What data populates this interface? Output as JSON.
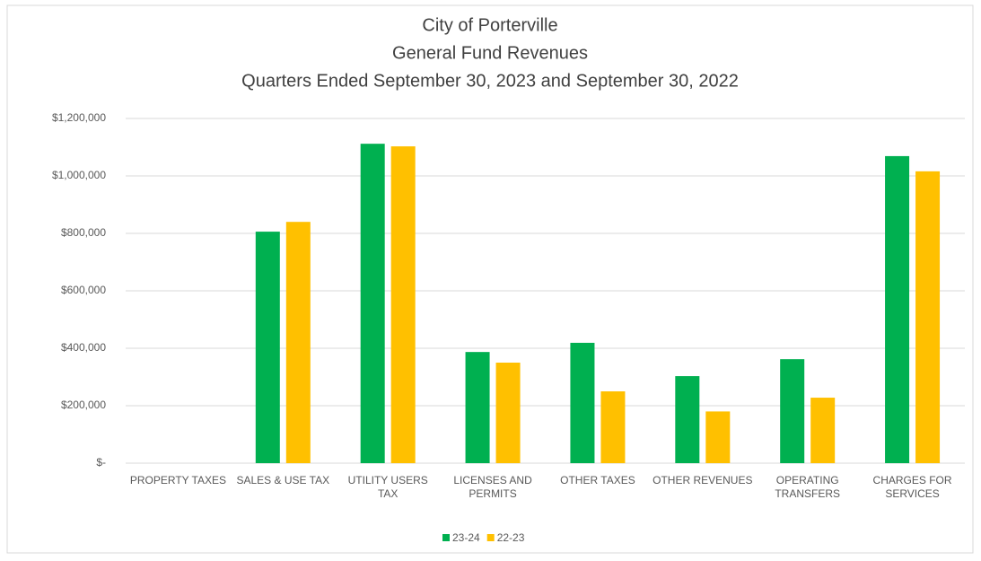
{
  "chart_data": {
    "type": "bar",
    "title": [
      "City of Porterville",
      "General Fund Revenues",
      "Quarters Ended September 30, 2023 and September 30, 2022"
    ],
    "categories": [
      "PROPERTY TAXES",
      "SALES & USE TAX",
      "UTILITY USERS TAX",
      "LICENSES AND PERMITS",
      "OTHER TAXES",
      "OTHER REVENUES",
      "OPERATING TRANSFERS",
      "CHARGES FOR SERVICES"
    ],
    "series": [
      {
        "name": "23-24",
        "color": "#00b050",
        "values": [
          0,
          806000,
          1112000,
          387000,
          419000,
          303000,
          362000,
          1069000
        ]
      },
      {
        "name": "22-23",
        "color": "#ffc000",
        "values": [
          0,
          840000,
          1103000,
          350000,
          250000,
          180000,
          228000,
          1016000
        ]
      }
    ],
    "ylim": [
      0,
      1200000
    ],
    "yticks": [
      {
        "value": 0,
        "label": "$-"
      },
      {
        "value": 200000,
        "label": "$200,000"
      },
      {
        "value": 400000,
        "label": "$400,000"
      },
      {
        "value": 600000,
        "label": "$600,000"
      },
      {
        "value": 800000,
        "label": "$800,000"
      },
      {
        "value": 1000000,
        "label": "$1,000,000"
      },
      {
        "value": 1200000,
        "label": "$1,200,000"
      }
    ],
    "grid": true,
    "legend": "bottom"
  }
}
